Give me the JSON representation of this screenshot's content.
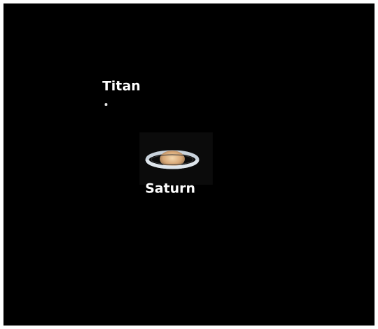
{
  "image": {
    "labels": {
      "titan": "Titan",
      "saturn": "Saturn"
    }
  }
}
